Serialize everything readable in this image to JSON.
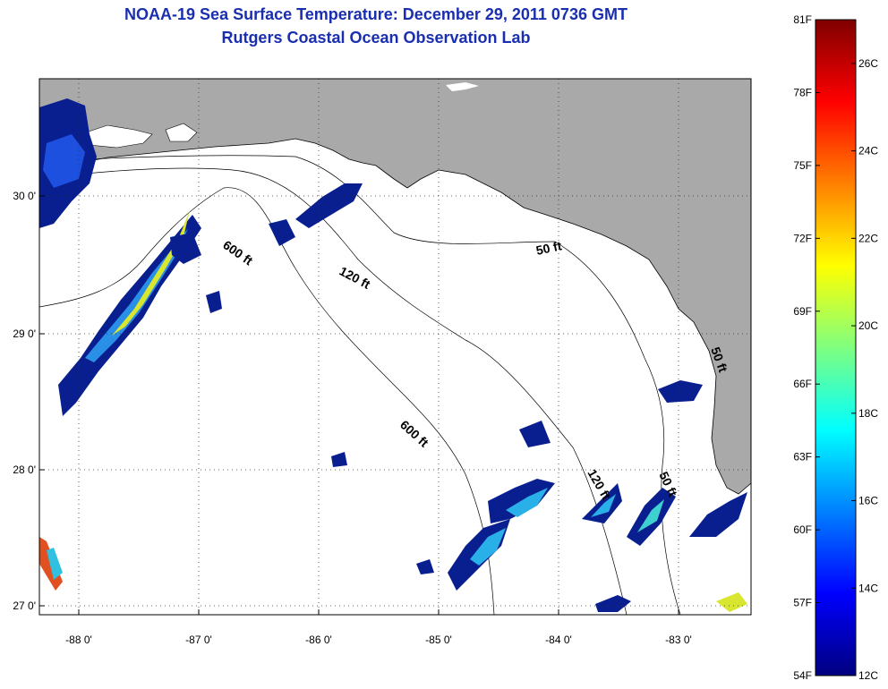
{
  "title": {
    "line1": "NOAA-19 Sea Surface Temperature:  December 29, 2011 0736 GMT",
    "line2": "Rutgers Coastal Ocean Observation Lab"
  },
  "axes": {
    "x_ticks": [
      "-88 0'",
      "-87 0'",
      "-86 0'",
      "-85 0'",
      "-84 0'",
      "-83 0'"
    ],
    "y_ticks": [
      "30 0'",
      "29 0'",
      "28 0'",
      "27 0'"
    ],
    "lon_range": [
      -88.35,
      -82.45
    ],
    "lat_range": [
      26.95,
      30.85
    ]
  },
  "contours": [
    {
      "label": "600 ft"
    },
    {
      "label": "120 ft"
    },
    {
      "label": "50 ft"
    },
    {
      "label": "600 ft"
    },
    {
      "label": "120 ft"
    },
    {
      "label": "50 ft"
    },
    {
      "label": "50 ft"
    }
  ],
  "colorbar": {
    "f_labels": [
      "81F",
      "78F",
      "75F",
      "72F",
      "69F",
      "66F",
      "63F",
      "60F",
      "57F",
      "54F"
    ],
    "c_labels": [
      "26C",
      "24C",
      "22C",
      "20C",
      "18C",
      "16C",
      "14C",
      "12C"
    ],
    "range_f": [
      54,
      81
    ],
    "range_c": [
      12,
      27
    ]
  },
  "colors": {
    "title": "#1a2fb0",
    "land": "#a9a9a9",
    "ocean": "#ffffff",
    "cold": "#0a1f8f",
    "mid": "#26b5e8",
    "warm": "#e8e020"
  }
}
